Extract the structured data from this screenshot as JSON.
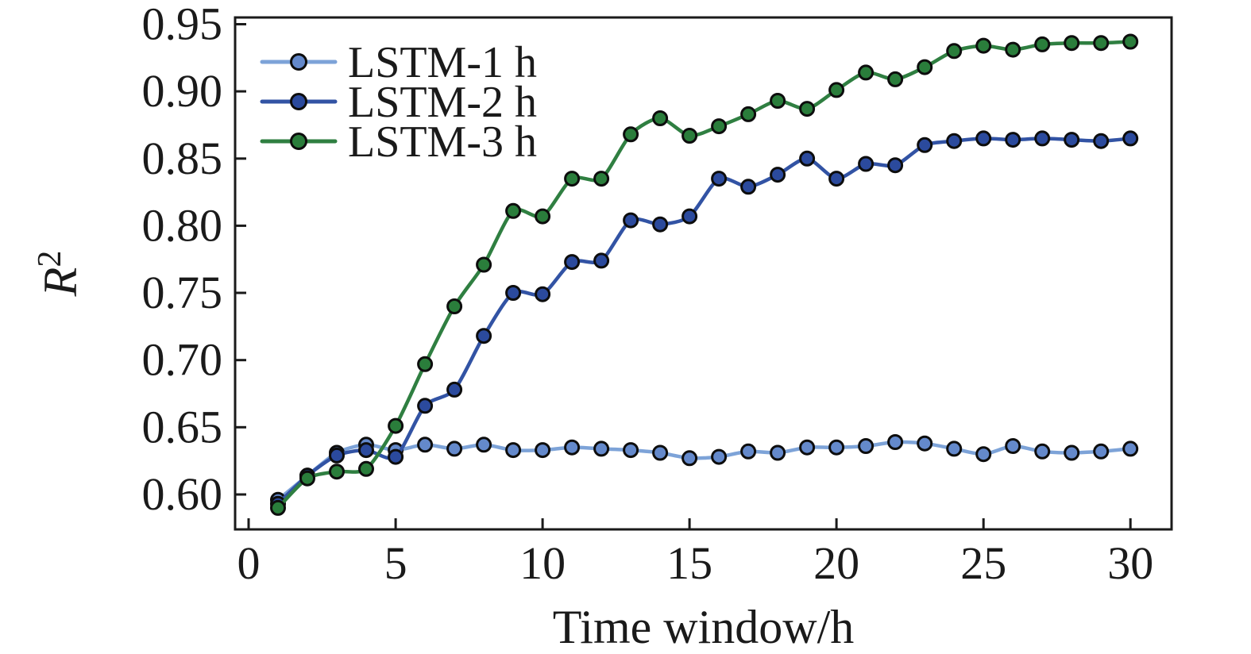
{
  "chart_data": {
    "type": "line",
    "title": "",
    "xlabel": "Time window/h",
    "ylabel": "R²",
    "ylabel_base": "R",
    "ylabel_sup": "2",
    "xlim": [
      -0.46,
      31.4
    ],
    "ylim": [
      0.574,
      0.955
    ],
    "xticks": [
      0,
      5,
      10,
      15,
      20,
      25,
      30
    ],
    "yticks": [
      0.6,
      0.65,
      0.7,
      0.75,
      0.8,
      0.85,
      0.9,
      0.95
    ],
    "grid": false,
    "legend_position": "upper-left-inside",
    "axis_color": "#1a1a1a",
    "marker_edge_color": "#0d0d0d",
    "x": [
      1,
      2,
      3,
      4,
      5,
      6,
      7,
      8,
      9,
      10,
      11,
      12,
      13,
      14,
      15,
      16,
      17,
      18,
      19,
      20,
      21,
      22,
      23,
      24,
      25,
      26,
      27,
      28,
      29,
      30
    ],
    "series": [
      {
        "name": "LSTM-1 h",
        "line_color": "#7da3d8",
        "marker_color": "#6489cb",
        "values": [
          0.596,
          0.614,
          0.631,
          0.637,
          0.633,
          0.637,
          0.634,
          0.637,
          0.633,
          0.633,
          0.635,
          0.634,
          0.633,
          0.631,
          0.627,
          0.628,
          0.632,
          0.631,
          0.635,
          0.635,
          0.636,
          0.639,
          0.638,
          0.634,
          0.63,
          0.636,
          0.632,
          0.631,
          0.632,
          0.634
        ]
      },
      {
        "name": "LSTM-2 h",
        "line_color": "#3253a4",
        "marker_color": "#2b4a9d",
        "values": [
          0.593,
          0.614,
          0.629,
          0.633,
          0.628,
          0.666,
          0.678,
          0.718,
          0.75,
          0.749,
          0.773,
          0.774,
          0.804,
          0.801,
          0.807,
          0.835,
          0.829,
          0.838,
          0.85,
          0.835,
          0.846,
          0.845,
          0.86,
          0.863,
          0.865,
          0.864,
          0.865,
          0.864,
          0.863,
          0.865
        ]
      },
      {
        "name": "LSTM-3 h",
        "line_color": "#2f7f41",
        "marker_color": "#2a7d3b",
        "values": [
          0.59,
          0.612,
          0.617,
          0.619,
          0.651,
          0.697,
          0.74,
          0.771,
          0.811,
          0.807,
          0.835,
          0.835,
          0.868,
          0.88,
          0.867,
          0.874,
          0.883,
          0.893,
          0.887,
          0.901,
          0.914,
          0.909,
          0.918,
          0.93,
          0.934,
          0.931,
          0.935,
          0.936,
          0.936,
          0.937
        ]
      }
    ]
  }
}
